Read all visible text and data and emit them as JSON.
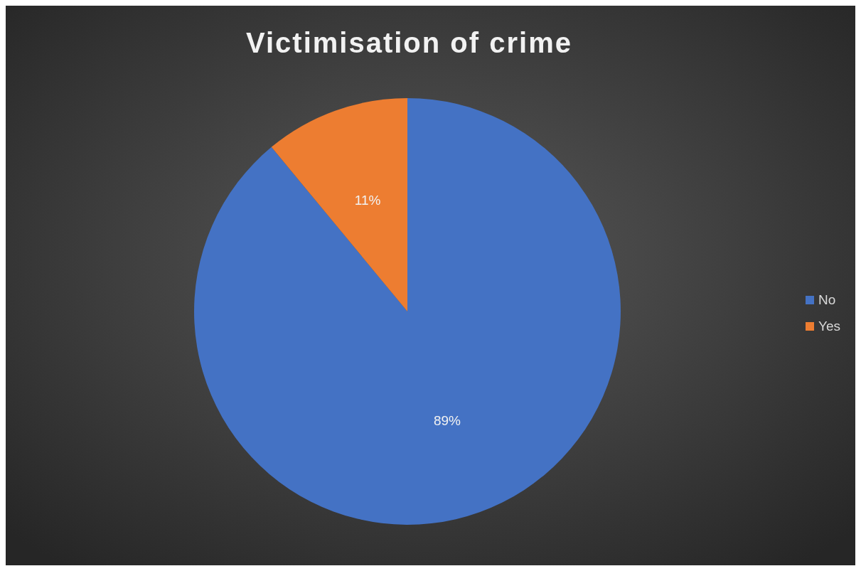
{
  "chart_data": {
    "type": "pie",
    "title": "Victimisation of crime",
    "categories": [
      "No",
      "Yes"
    ],
    "values": [
      89,
      11
    ],
    "colors": [
      "#4472c4",
      "#ed7d31"
    ],
    "value_labels": [
      "89%",
      "11%"
    ],
    "legend": "right"
  }
}
